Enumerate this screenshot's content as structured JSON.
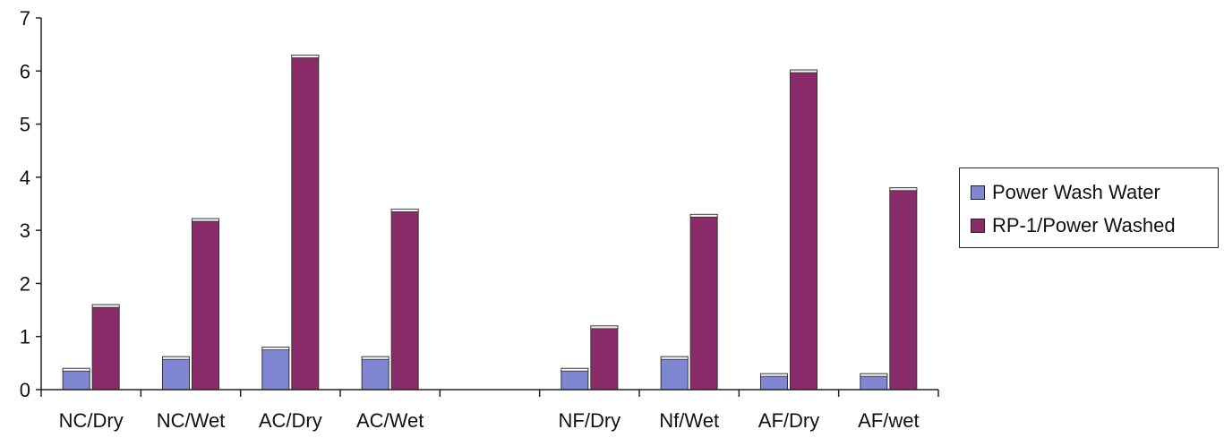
{
  "chart_data": {
    "type": "bar",
    "categories": [
      "NC/Dry",
      "NC/Wet",
      "AC/Dry",
      "AC/Wet",
      "",
      "NF/Dry",
      "Nf/Wet",
      "AF/Dry",
      "AF/wet"
    ],
    "series": [
      {
        "name": "Power Wash Water",
        "color": "#7f86d2",
        "values": [
          0.4,
          0.62,
          0.8,
          0.62,
          null,
          0.4,
          0.62,
          0.3,
          0.3
        ]
      },
      {
        "name": "RP-1/Power Washed",
        "color": "#8b2c6a",
        "values": [
          1.6,
          3.22,
          6.3,
          3.4,
          null,
          1.2,
          3.3,
          6.02,
          3.8
        ]
      }
    ],
    "ylim": [
      0,
      7
    ],
    "yticks": [
      "0",
      "1",
      "2",
      "3",
      "4",
      "5",
      "6",
      "7"
    ],
    "legend_position": "right",
    "grid": false
  }
}
